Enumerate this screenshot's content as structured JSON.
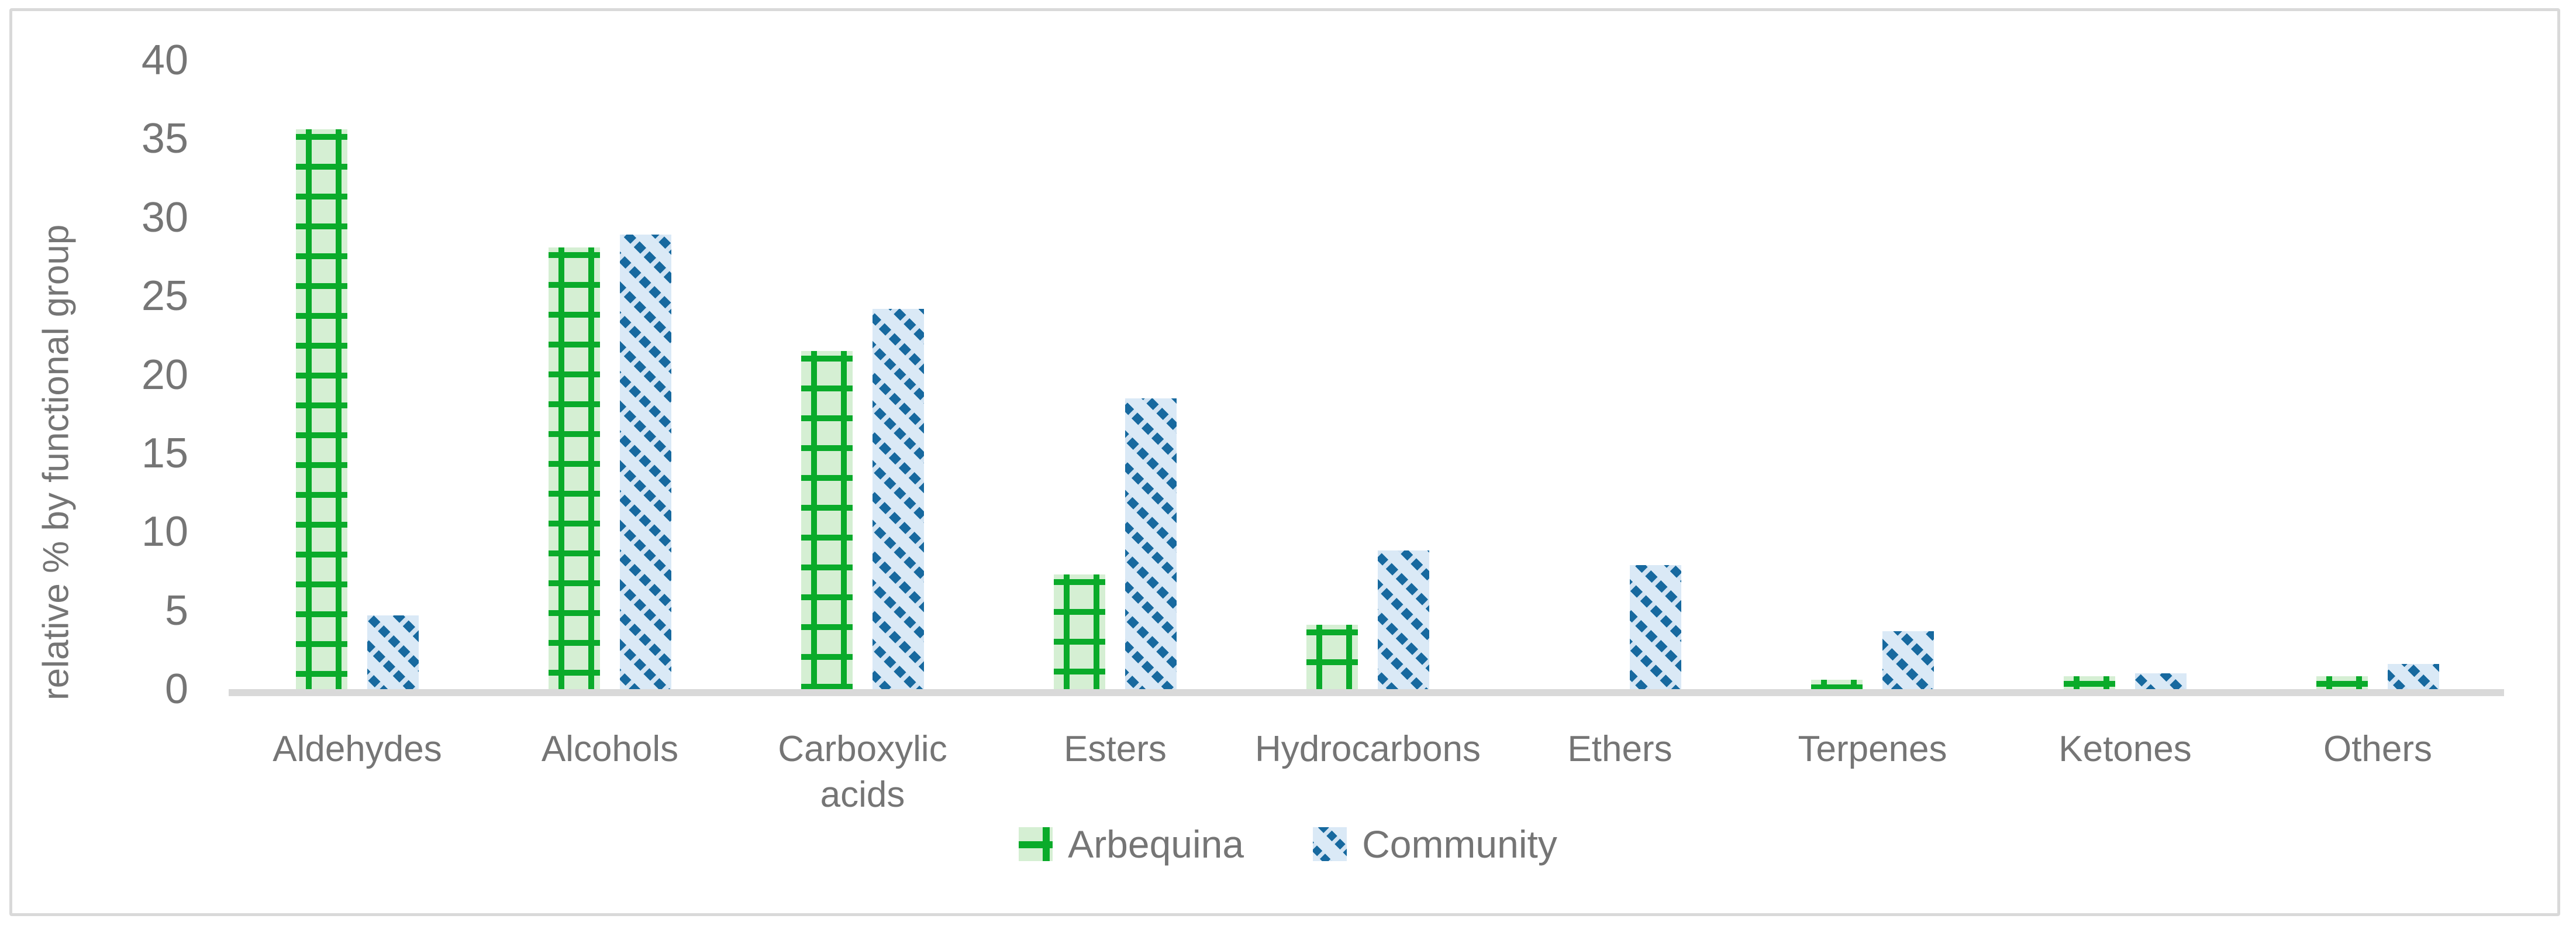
{
  "chart_data": {
    "type": "bar",
    "title": "",
    "xlabel": "",
    "ylabel": "relative % by functional group",
    "ylim": [
      0,
      40
    ],
    "yticks": [
      0,
      5,
      10,
      15,
      20,
      25,
      30,
      35,
      40
    ],
    "grid": false,
    "legend_position": "bottom-center",
    "categories": [
      "Aldehydes",
      "Alcohols",
      "Carboxylic acids",
      "Esters",
      "Hydrocarbons",
      "Ethers",
      "Terpenes",
      "Ketones",
      "Others"
    ],
    "series": [
      {
        "name": "Arbequina",
        "pattern": "green grid hatch",
        "fill": "#d5efd3",
        "line": "#0aab2a",
        "values": [
          35.6,
          28.1,
          21.5,
          7.3,
          4.1,
          0,
          0.6,
          0.8,
          0.8
        ]
      },
      {
        "name": "Community",
        "pattern": "blue dashed diagonal hatch",
        "fill": "#dae9f6",
        "line": "#17699f",
        "values": [
          4.7,
          28.9,
          24.2,
          18.5,
          8.8,
          7.9,
          3.7,
          1.0,
          1.6
        ]
      }
    ]
  },
  "colors": {
    "text_gray": "#757575",
    "axis_line": "#d9d9d9",
    "figure_border": "#d9d9d9"
  }
}
